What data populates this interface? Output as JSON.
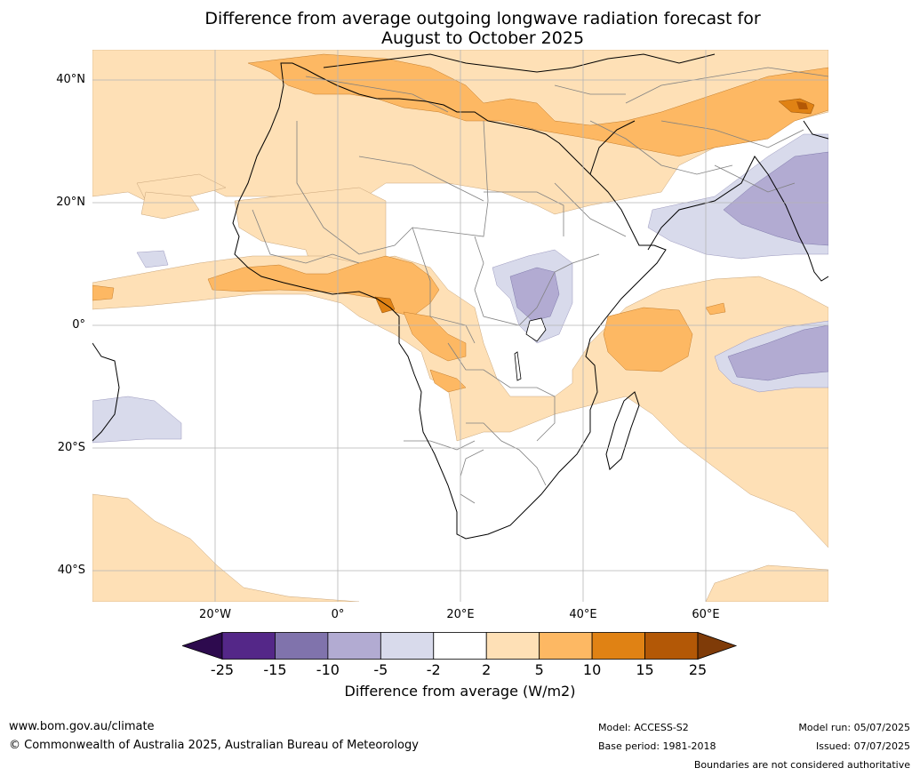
{
  "title": {
    "line1": "Difference from average outgoing longwave radiation forecast for",
    "line2": "August to October 2025"
  },
  "map": {
    "lat_labels": [
      "40°N",
      "20°N",
      "0°",
      "20°S",
      "40°S"
    ],
    "lon_labels": [
      "20°W",
      "0°",
      "20°E",
      "40°E",
      "60°E"
    ],
    "gridlines": true,
    "extent": {
      "lon": [
        -40,
        80
      ],
      "lat": [
        -45,
        45
      ]
    }
  },
  "legend": {
    "title": "Difference from average (W/m2)",
    "ticks": [
      "-25",
      "-15",
      "-10",
      "-5",
      "-2",
      "2",
      "5",
      "10",
      "15",
      "25"
    ],
    "colors": {
      "below_min": "#2d0a4e",
      "bins": [
        "#542788",
        "#8073ac",
        "#b2abd2",
        "#d8daeb",
        "#ffffff",
        "#fee0b6",
        "#fdb863",
        "#e08214",
        "#b35806"
      ],
      "above_max": "#7f3b08"
    }
  },
  "footer": {
    "website": "www.bom.gov.au/climate",
    "copyright": "© Commonwealth of Australia 2025, Australian Bureau of Meteorology",
    "model": "Model: ACCESS-S2",
    "base_period": "Base period: 1981-2018",
    "model_run": "Model run: 05/07/2025",
    "issued": "Issued: 07/07/2025",
    "disclaimer": "Boundaries are not considered authoritative"
  }
}
